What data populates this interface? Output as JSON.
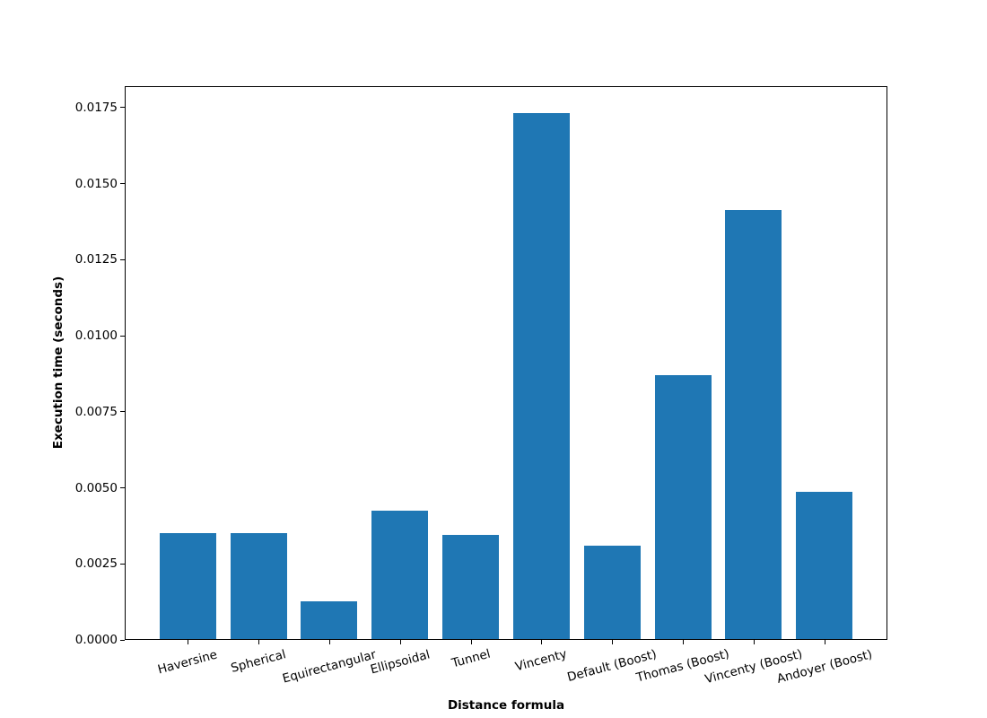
{
  "chart_data": {
    "type": "bar",
    "title": "",
    "xlabel": "Distance formula",
    "ylabel": "Execution time (seconds)",
    "categories": [
      "Haversine",
      "Spherical",
      "Equirectangular",
      "Ellipsoidal",
      "Tunnel",
      "Vincenty",
      "Default (Boost)",
      "Thomas (Boost)",
      "Vincenty (Boost)",
      "Andoyer (Boost)"
    ],
    "values": [
      0.00351,
      0.0035,
      0.00127,
      0.00424,
      0.00346,
      0.01733,
      0.0031,
      0.00869,
      0.01414,
      0.00488
    ],
    "ylim": [
      0,
      0.0182
    ],
    "yticks": [
      0.0,
      0.0025,
      0.005,
      0.0075,
      0.01,
      0.0125,
      0.015,
      0.0175
    ],
    "ytick_labels": [
      "0.0000",
      "0.0025",
      "0.0050",
      "0.0075",
      "0.0100",
      "0.0125",
      "0.0150",
      "0.0175"
    ],
    "bar_color": "#1f77b4",
    "axis_color": "#000000",
    "background_color": "#ffffff",
    "grid": false,
    "legend_position": "none",
    "xtick_rotation_deg": 15
  }
}
